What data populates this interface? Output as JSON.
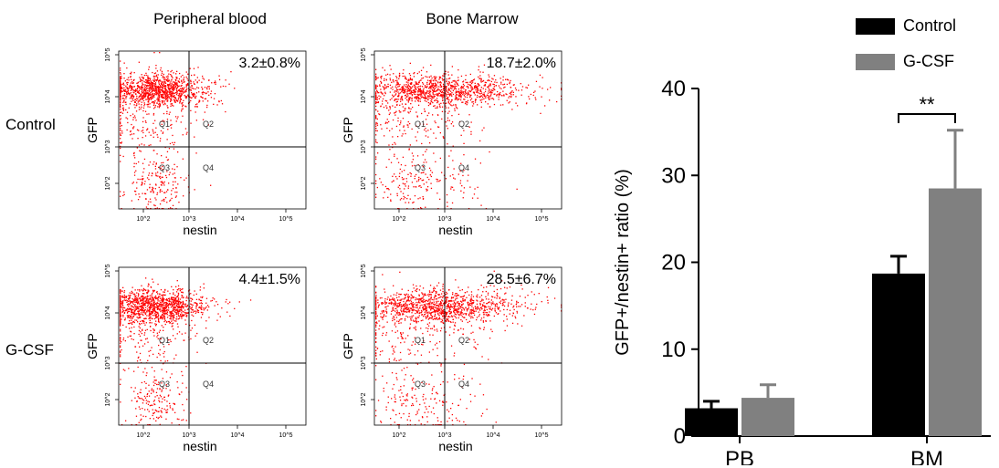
{
  "chart_data": [
    {
      "type": "scatter",
      "subtype": "flow-cytometry-quadrant-plots",
      "columns": [
        "Peripheral blood",
        "Bone Marrow"
      ],
      "rows": [
        "Control",
        "G-CSF"
      ],
      "xlabel": "nestin",
      "ylabel": "GFP",
      "xticks": [
        "10^2",
        "10^3",
        "10^4",
        "10^5"
      ],
      "yticks": [
        "10^2",
        "10^3",
        "10^4",
        "10^5"
      ],
      "quadrants": [
        "Q1",
        "Q2",
        "Q3",
        "Q4"
      ],
      "point_color": "#ff0000",
      "panels": [
        {
          "row": "Control",
          "column": "Peripheral blood",
          "label": "3.2±0.8%",
          "value": 3.2,
          "sd": 0.8
        },
        {
          "row": "Control",
          "column": "Bone Marrow",
          "label": "18.7±2.0%",
          "value": 18.7,
          "sd": 2.0
        },
        {
          "row": "G-CSF",
          "column": "Peripheral blood",
          "label": "4.4±1.5%",
          "value": 4.4,
          "sd": 1.5
        },
        {
          "row": "G-CSF",
          "column": "Bone Marrow",
          "label": "28.5±6.7%",
          "value": 28.5,
          "sd": 6.7
        }
      ]
    },
    {
      "type": "bar",
      "categories": [
        "PB",
        "BM"
      ],
      "series": [
        {
          "name": "Control",
          "color": "#000000",
          "values": [
            3.2,
            18.7
          ],
          "errors": [
            0.8,
            2.0
          ]
        },
        {
          "name": "G-CSF",
          "color": "#808080",
          "values": [
            4.4,
            28.5
          ],
          "errors": [
            1.5,
            6.7
          ]
        }
      ],
      "ylabel": "GFP+/nestin+ ratio (%)",
      "ylim": [
        0,
        40
      ],
      "yticks": [
        0,
        10,
        20,
        30,
        40
      ],
      "significance": {
        "category": "BM",
        "label": "**"
      },
      "legend": "top-right",
      "grid": false
    }
  ]
}
